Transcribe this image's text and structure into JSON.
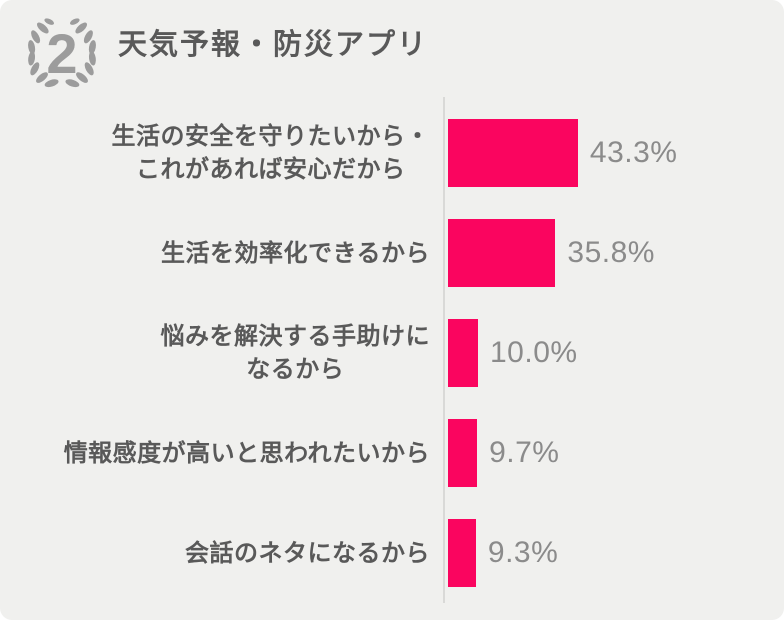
{
  "header": {
    "rank": "2",
    "title": "天気予報・防災アプリ",
    "icon": "laurel-wreath-rank-badge",
    "icon_color": "#9c9c9c",
    "title_color": "#595959"
  },
  "chart_data": {
    "type": "bar",
    "orientation": "horizontal",
    "title": "天気予報・防災アプリ",
    "unit": "%",
    "categories": [
      "生活の安全を守りたいから・\nこれがあれば安心だから",
      "生活を効率化できるから",
      "悩みを解決する手助けに\nなるから",
      "情報感度が高いと思われたいから",
      "会話のネタになるから"
    ],
    "values": [
      43.3,
      35.8,
      10.0,
      9.7,
      9.3
    ],
    "value_labels": [
      "43.3%",
      "35.8%",
      "10.0%",
      "9.7%",
      "9.3%"
    ],
    "xlim": [
      0,
      100
    ],
    "grid": false,
    "legend": false,
    "bar_color": "#fa055f",
    "value_color": "#8b8b8b",
    "label_color": "#595959",
    "axis_color": "#d9d9d7"
  },
  "colors": {
    "background": "#f0f0ee",
    "page_behind": "#ffffff"
  }
}
